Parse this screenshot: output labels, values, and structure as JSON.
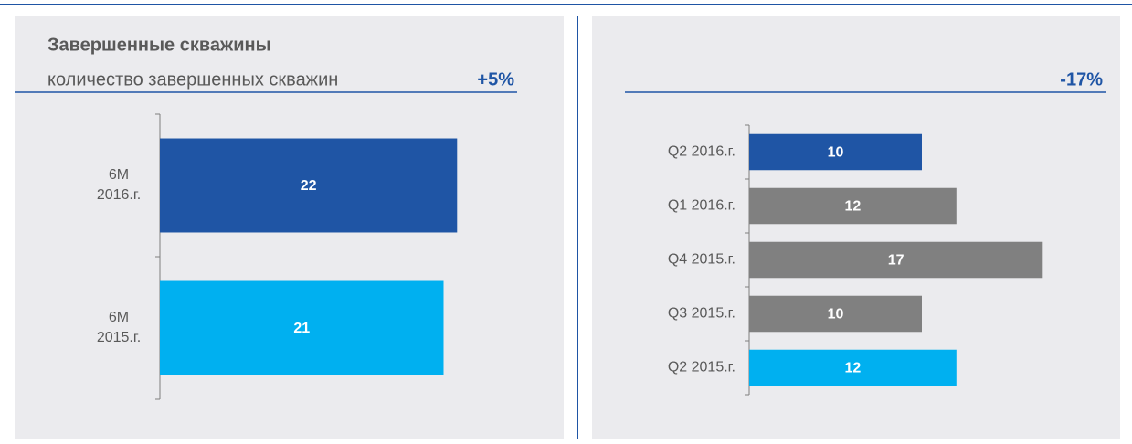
{
  "chart_data": [
    {
      "type": "barh",
      "title": "Завершенные скважины",
      "subtitle": "количество завершенных скважин",
      "annotation": "+5%",
      "categories": [
        "6M 2016.г.",
        "6M 2015.г."
      ],
      "values": [
        22,
        21
      ],
      "colors": [
        "#1f55a5",
        "#00b0f0"
      ],
      "xlim": [
        0,
        28
      ]
    },
    {
      "type": "barh",
      "annotation": "-17%",
      "categories": [
        "Q2 2016.г.",
        "Q1 2016.г.",
        "Q4 2015.г.",
        "Q3 2015.г.",
        "Q2 2015.г."
      ],
      "values": [
        10,
        12,
        17,
        10,
        12
      ],
      "colors": [
        "#1f55a5",
        "#808080",
        "#808080",
        "#808080",
        "#00b0f0"
      ],
      "xlim": [
        0,
        20
      ]
    }
  ]
}
